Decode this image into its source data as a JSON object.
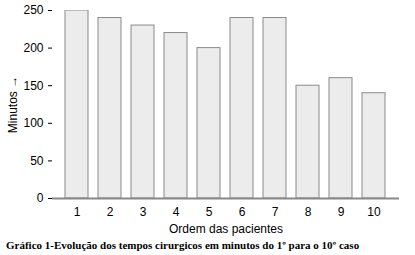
{
  "chart_data": {
    "type": "bar",
    "title": "Gráfico 1-Evolução dos tempos cirurgicos em minutos do 1º para o 10º caso",
    "x_label": "Ordem das pacientes",
    "y_label": "Minutos",
    "categories": [
      "1",
      "2",
      "3",
      "4",
      "5",
      "6",
      "7",
      "8",
      "9",
      "10"
    ],
    "values": [
      250,
      240,
      230,
      220,
      200,
      240,
      240,
      150,
      160,
      140
    ],
    "color": "#ececec",
    "ylim": [
      0,
      250
    ],
    "yticks": [
      0,
      50,
      100,
      150,
      200,
      250
    ],
    "grid": false
  }
}
